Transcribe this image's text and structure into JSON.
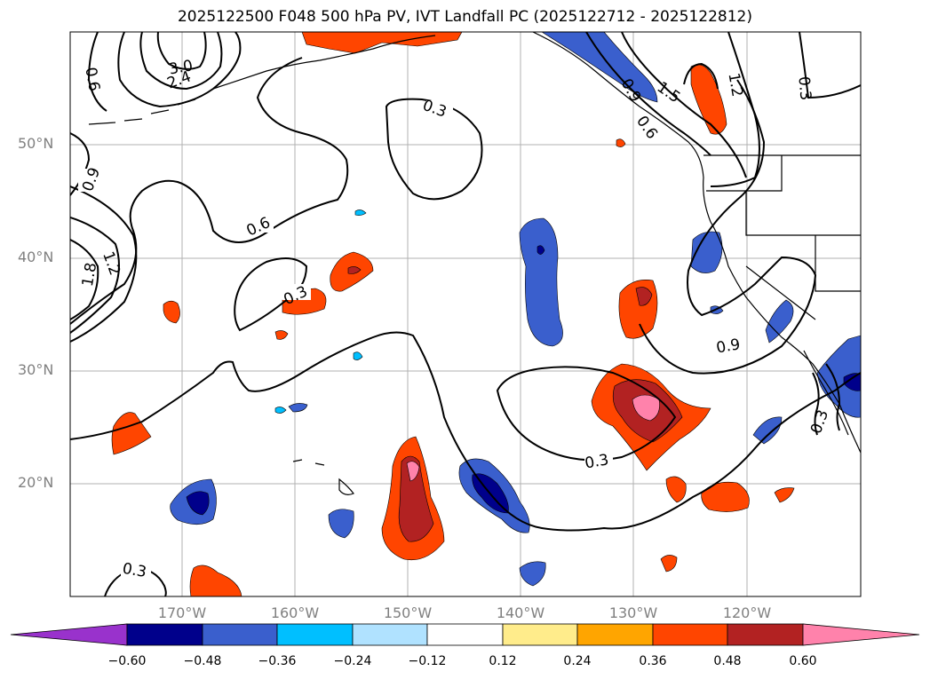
{
  "title": "2025122500 F048 500 hPa PV, IVT Landfall PC (2025122712 - 2025122812)",
  "lat_labels": [
    "50°N",
    "40°N",
    "30°N",
    "20°N"
  ],
  "lon_labels": [
    "170°W",
    "160°W",
    "150°W",
    "140°W",
    "130°W",
    "120°W"
  ],
  "colorbar": {
    "ticks": [
      "−0.60",
      "−0.48",
      "−0.36",
      "−0.24",
      "−0.12",
      "0.12",
      "0.24",
      "0.36",
      "0.48",
      "0.60"
    ],
    "colors": [
      "#9932cc",
      "#00008b",
      "#3a5fcd",
      "#00bfff",
      "#b0e2ff",
      "#ffffff",
      "#ffec8b",
      "#ffa500",
      "#ff4500",
      "#b22222",
      "#ff82ab"
    ]
  },
  "contour_labels": [
    "0.3",
    "0.6",
    "0.9",
    "1.2",
    "1.5",
    "1.8",
    "2.4",
    "3.0",
    "0.3",
    "0.3",
    "0.3",
    "0.9",
    "0.6",
    "0.3",
    "1.2",
    "0.9",
    "0.6",
    "0.3"
  ],
  "colors": {
    "land_line": "#000000",
    "grid": "#b0b0b0",
    "axis_label": "#808080"
  }
}
